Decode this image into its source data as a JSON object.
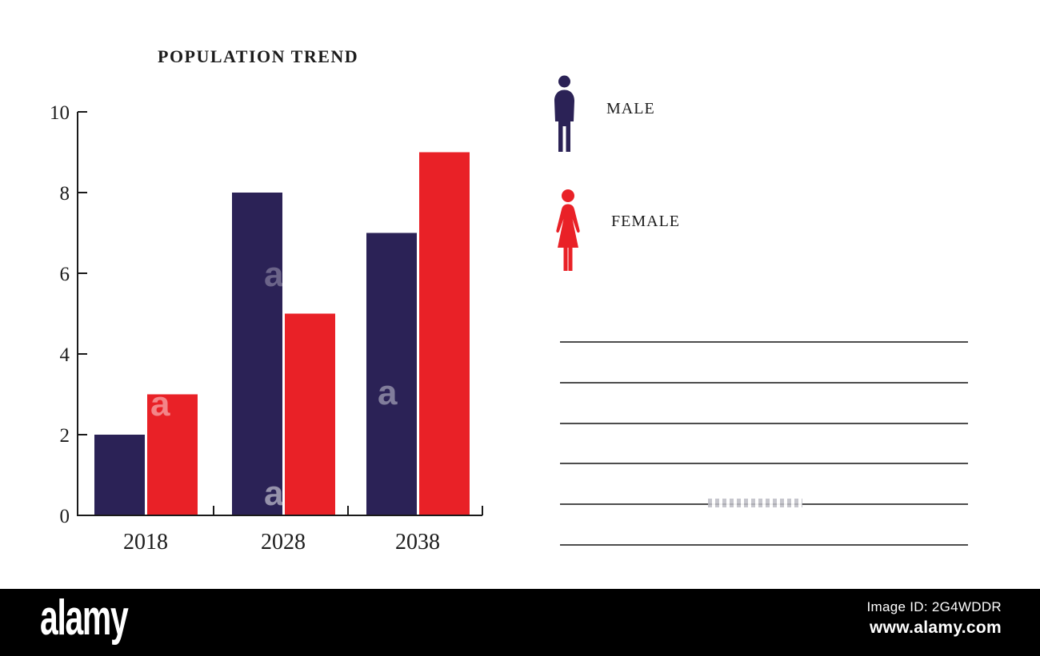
{
  "chart_data": {
    "type": "bar",
    "title": "POPULATION TREND",
    "categories": [
      "2018",
      "2028",
      "2038"
    ],
    "series": [
      {
        "name": "MALE",
        "color": "#2b2256",
        "values": [
          2,
          8,
          7
        ]
      },
      {
        "name": "FEMALE",
        "color": "#e92127",
        "values": [
          3,
          5,
          9
        ]
      }
    ],
    "xlabel": "",
    "ylabel": "",
    "ylim": [
      0,
      10
    ],
    "yticks": [
      0,
      2,
      4,
      6,
      8,
      10
    ],
    "grid": false,
    "legend_position": "right-of-chart",
    "axis_color": "#1a1a1a",
    "tick_label_color": "#1c1c1c"
  },
  "legend": {
    "items": [
      {
        "label": "MALE",
        "icon": "male-figure-icon",
        "color": "#2b2256"
      },
      {
        "label": "FEMALE",
        "icon": "female-figure-icon",
        "color": "#e92127"
      }
    ]
  },
  "notes_panel": {
    "line_count": 6,
    "line_color": "#4d4d4d"
  },
  "watermark": {
    "letter": "a"
  },
  "footer": {
    "logo_text": "alamy",
    "image_id": "Image ID: 2G4WDDR",
    "website": "www.alamy.com",
    "background": "#000000"
  }
}
